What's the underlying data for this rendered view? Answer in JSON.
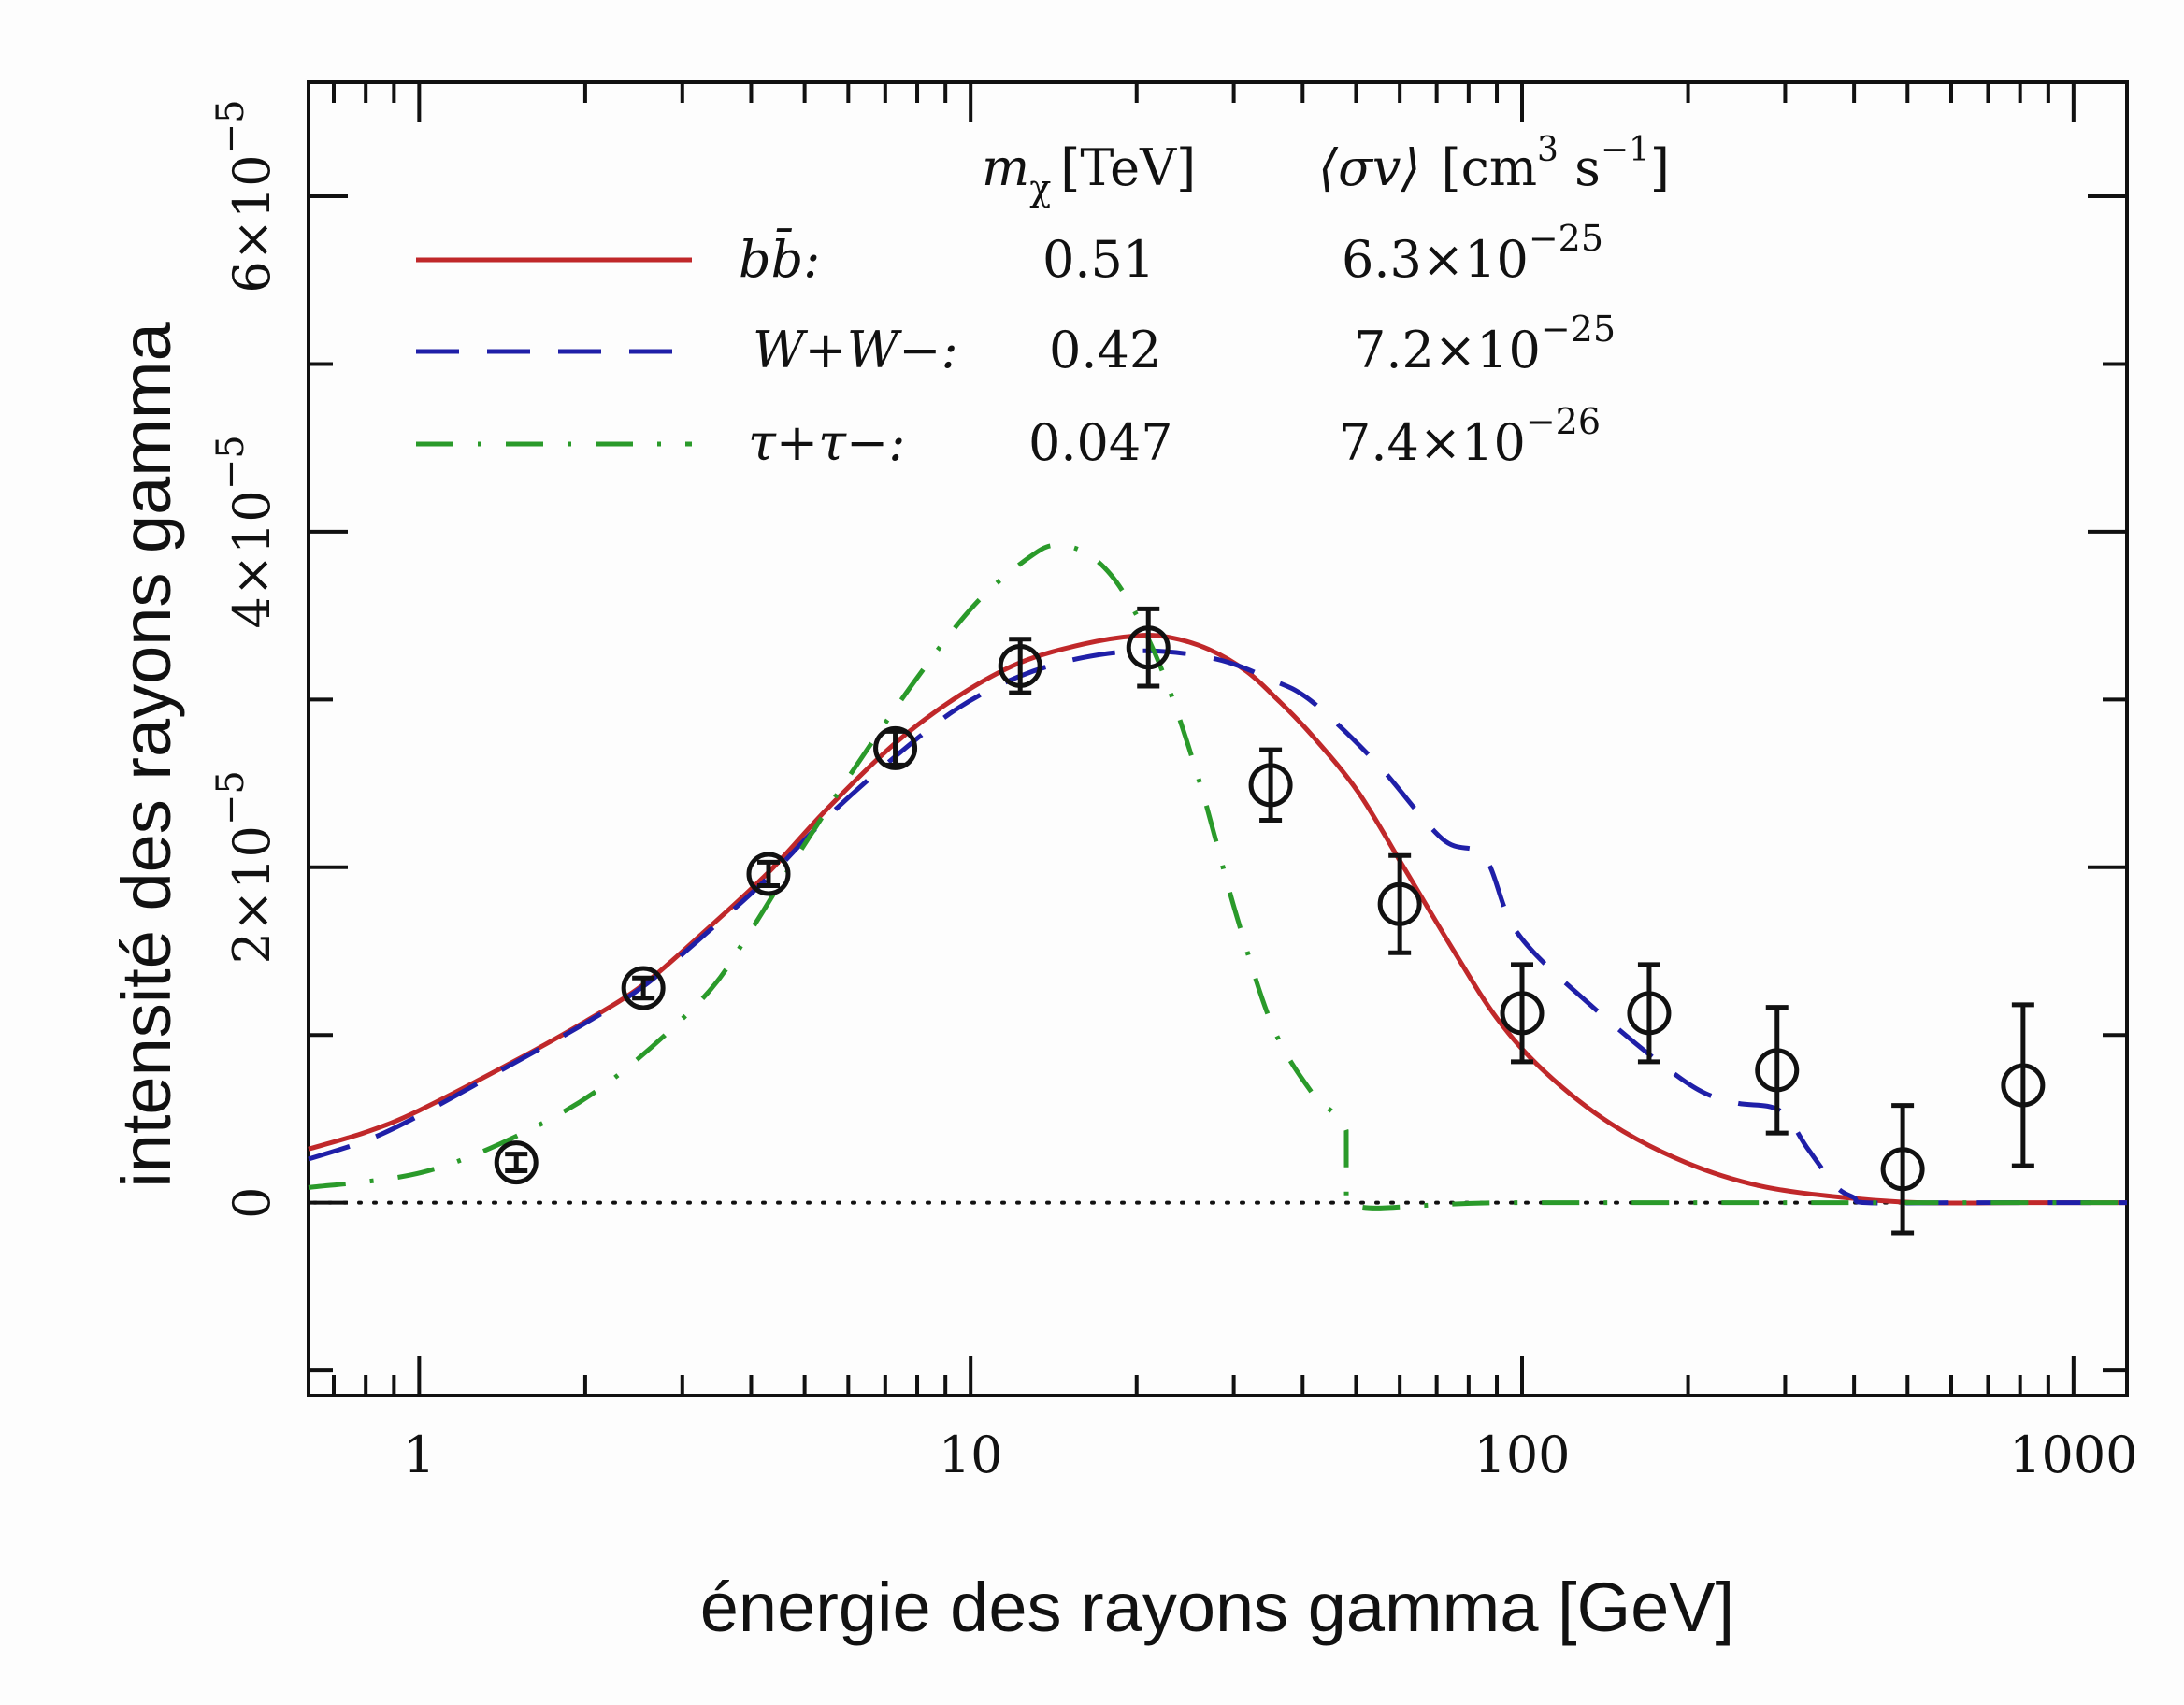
{
  "chart_data": {
    "type": "line",
    "title": "",
    "xlabel": "énergie des rayons gamma [GeV]",
    "ylabel": "intensité des rayons gamma",
    "xscale": "log",
    "xlim": [
      0.63,
      1250
    ],
    "ylim": [
      -1.15e-05,
      6.68e-05
    ],
    "y_unit_exponent": -5,
    "grid": false,
    "x_ticks": [
      {
        "value": 1,
        "label": "1"
      },
      {
        "value": 10,
        "label": "10"
      },
      {
        "value": 100,
        "label": "100"
      },
      {
        "value": 1000,
        "label": "1000"
      }
    ],
    "y_ticks": [
      {
        "value": 0,
        "label": "0",
        "mantissa": "",
        "exponent": ""
      },
      {
        "value": 2e-05,
        "label": "2×10−5",
        "mantissa": "2×10",
        "exponent": "−5"
      },
      {
        "value": 4e-05,
        "label": "4×10−5",
        "mantissa": "4×10",
        "exponent": "−5"
      },
      {
        "value": 6e-05,
        "label": "6×10−5",
        "mantissa": "6×10",
        "exponent": "−5"
      }
    ],
    "zero_reference_line": {
      "y": 0,
      "style": "dotted",
      "color": "#111111"
    },
    "legend": {
      "placement": "top-left",
      "header": {
        "col1": "mχ [TeV]",
        "col1_symbol": "m",
        "col1_sub": "χ",
        "col1_unit": "[TeV]",
        "col2": "⟨σv⟩ [cm3 s−1]",
        "col2_symbol": "⟨σv⟩",
        "col2_unit_a": "[cm",
        "col2_unit_a_sup": "3",
        "col2_unit_b": " s",
        "col2_unit_b_sup": "−1",
        "col2_unit_c": "]"
      },
      "entries": [
        {
          "channel": "bb̄:",
          "mass": "0.51",
          "sigma_v_mantissa": "6.3×10",
          "sigma_v_exp": "−25",
          "style": "solid",
          "color": "#c0282a"
        },
        {
          "channel": "W+W−:",
          "mass": "0.42",
          "sigma_v_mantissa": "7.2×10",
          "sigma_v_exp": "−25",
          "style": "dashed",
          "color": "#1f1fa8"
        },
        {
          "channel": "τ+τ−:",
          "mass": "0.047",
          "sigma_v_mantissa": "7.4×10",
          "sigma_v_exp": "−26",
          "style": "dashdot",
          "color": "#2a9a2a"
        }
      ]
    },
    "series": [
      {
        "name": "bb̄ (mχ = 0.51 TeV)",
        "color": "#c0282a",
        "style": "solid",
        "x": [
          0.63,
          0.8,
          1.0,
          1.5,
          2.0,
          2.55,
          3.3,
          4.3,
          5.5,
          7.3,
          9.5,
          12.3,
          16,
          20,
          23,
          27,
          31.6,
          36,
          41.5,
          50.4,
          61,
          74.6,
          90,
          110,
          145,
          198,
          270,
          385,
          527,
          800,
          1250
        ],
        "y": [
          3.2e-06,
          4.2e-06,
          5.5e-06,
          8.5e-06,
          1.08e-05,
          1.3e-05,
          1.62e-05,
          1.97e-05,
          2.35e-05,
          2.74e-05,
          3.02e-05,
          3.22e-05,
          3.33e-05,
          3.38e-05,
          3.37e-05,
          3.3e-05,
          3.17e-05,
          3e-05,
          2.79e-05,
          2.45e-05,
          2e-05,
          1.52e-05,
          1.1e-05,
          7.8e-06,
          4.7e-06,
          2.4e-06,
          1e-06,
          3e-07,
          0.0,
          0.0,
          0.0
        ]
      },
      {
        "name": "W+W− (mχ = 0.42 TeV)",
        "color": "#1f1fa8",
        "style": "dashed",
        "x": [
          0.63,
          0.8,
          1.0,
          1.5,
          2.0,
          2.55,
          3.3,
          4.3,
          5.5,
          7.3,
          9.5,
          12.3,
          16,
          21,
          28,
          35,
          41.5,
          54.5,
          71.6,
          85.5,
          98,
          134,
          198,
          241,
          293,
          330,
          370,
          400,
          420,
          600,
          1000,
          1250
        ],
        "y": [
          2.6e-06,
          3.7e-06,
          5.2e-06,
          8.4e-06,
          1.07e-05,
          1.29e-05,
          1.6e-05,
          1.94e-05,
          2.3e-05,
          2.66e-05,
          2.95e-05,
          3.14e-05,
          3.25e-05,
          3.29e-05,
          3.24e-05,
          3.12e-05,
          2.99e-05,
          2.62e-05,
          2.17e-05,
          2.06e-05,
          1.61e-05,
          1.17e-05,
          7.2e-06,
          6e-06,
          5.5e-06,
          3.2e-06,
          1e-06,
          3e-07,
          0.0,
          0.0,
          0.0,
          0.0
        ]
      },
      {
        "name": "τ+τ− (mχ = 0.047 TeV)",
        "color": "#2a9a2a",
        "style": "dashdot",
        "x": [
          0.63,
          1.01,
          1.53,
          2.21,
          3.27,
          3.97,
          4.83,
          6.1,
          8.0,
          10.2,
          12.8,
          14.4,
          16.6,
          19,
          22.2,
          26,
          30.3,
          35.3,
          41.5,
          48,
          48.01,
          100,
          1250
        ],
        "y": [
          9e-07,
          1.8e-06,
          4.1e-06,
          7.2e-06,
          1.22e-05,
          1.61e-05,
          2.06e-05,
          2.57e-05,
          3.13e-05,
          3.57e-05,
          3.85e-05,
          3.92e-05,
          3.85e-05,
          3.63e-05,
          3.18e-05,
          2.51e-05,
          1.72e-05,
          1.05e-05,
          6.6e-06,
          4.3e-06,
          0.0,
          0.0,
          0.0
        ]
      },
      {
        "name": "data",
        "type": "scatter_errorbar",
        "color": "#111111",
        "marker": "open-circle",
        "x": [
          1.5,
          2.55,
          4.3,
          7.3,
          12.3,
          21,
          35,
          60,
          100,
          170,
          290,
          490,
          810
        ],
        "y": [
          2.4e-06,
          1.28e-05,
          1.96e-05,
          2.71e-05,
          3.2e-05,
          3.31e-05,
          2.49e-05,
          1.78e-05,
          1.13e-05,
          1.13e-05,
          7.9e-06,
          2e-06,
          7e-06
        ],
        "yerr": [
          5e-07,
          6e-07,
          7e-07,
          1e-06,
          1.6e-06,
          2.3e-06,
          2.1e-06,
          2.9e-06,
          2.9e-06,
          2.9e-06,
          3.75e-06,
          3.8e-06,
          4.8e-06
        ]
      }
    ]
  }
}
